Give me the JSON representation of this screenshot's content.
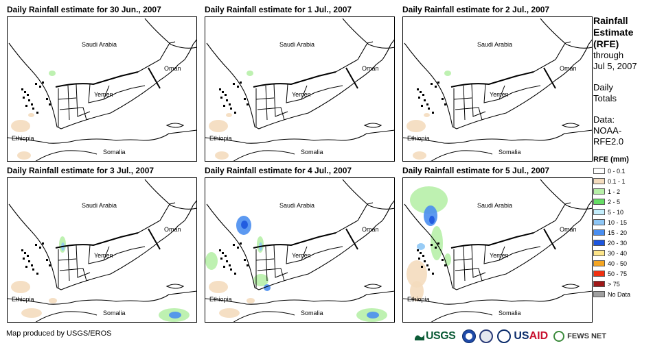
{
  "panels": [
    {
      "title": "Daily Rainfall estimate for 30 Jun., 2007",
      "rain_level": "light"
    },
    {
      "title": "Daily Rainfall estimate for 1 Jul., 2007",
      "rain_level": "light"
    },
    {
      "title": "Daily Rainfall estimate for 2 Jul., 2007",
      "rain_level": "light"
    },
    {
      "title": "Daily Rainfall estimate for 3 Jul., 2007",
      "rain_level": "moderate"
    },
    {
      "title": "Daily Rainfall estimate for 4 Jul., 2007",
      "rain_level": "moderate"
    },
    {
      "title": "Daily Rainfall estimate for 5 Jul., 2007",
      "rain_level": "heavy"
    }
  ],
  "map_labels": {
    "saudi": "Saudi Arabia",
    "oman": "Oman",
    "yemen": "Yemen",
    "ethiopia": "Ethiopia",
    "somalia": "Somalia"
  },
  "sidebar": {
    "title_line1": "Rainfall",
    "title_line2": "Estimate",
    "title_line3": "(RFE)",
    "through": "through",
    "date": "Jul 5, 2007",
    "daily1": "Daily",
    "daily2": "Totals",
    "data1": "Data:",
    "data2": "NOAA-",
    "data3": "RFE2.0",
    "legend_title": "RFE (mm)"
  },
  "legend": [
    {
      "label": "0 - 0.1",
      "color": "#ffffff"
    },
    {
      "label": "0.1 - 1",
      "color": "#f4dcbe"
    },
    {
      "label": "1 - 2",
      "color": "#b7f0a8"
    },
    {
      "label": "2 - 5",
      "color": "#66dd66"
    },
    {
      "label": "5 - 10",
      "color": "#c4eefc"
    },
    {
      "label": "10 - 15",
      "color": "#8ec6f5"
    },
    {
      "label": "15 - 20",
      "color": "#4a8ef0"
    },
    {
      "label": "20 - 30",
      "color": "#1c55de"
    },
    {
      "label": "30 - 40",
      "color": "#fde58a"
    },
    {
      "label": "40 - 50",
      "color": "#f5a623"
    },
    {
      "label": "50 - 75",
      "color": "#f03010"
    },
    {
      "label": "> 75",
      "color": "#a01818"
    },
    {
      "label": "No Data",
      "color": "#a0a0a0"
    }
  ],
  "footer": {
    "credit": "Map produced by USGS/EROS",
    "usgs": "USGS",
    "usaid_a": "US",
    "usaid_b": "AID",
    "fews": "FEWS NET"
  }
}
